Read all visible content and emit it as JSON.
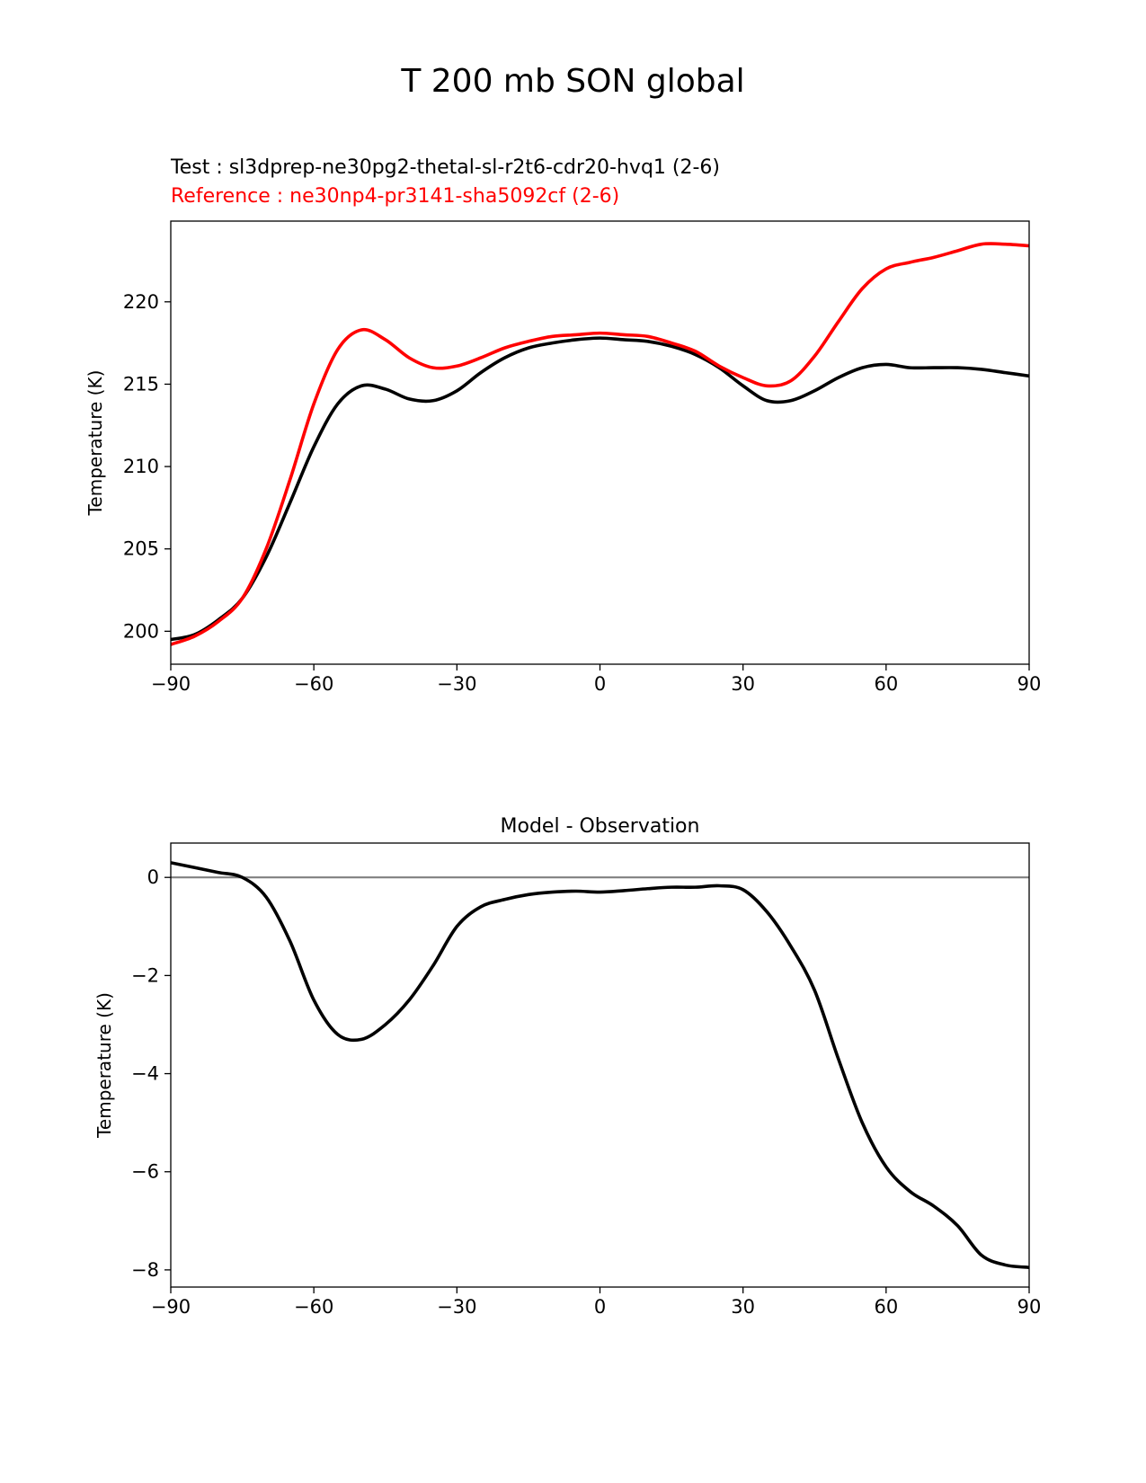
{
  "figure": {
    "title": "T 200 mb SON global",
    "legend": {
      "test": "Test : sl3dprep-ne30pg2-thetal-sl-r2t6-cdr20-hvq1 (2-6)",
      "reference": "Reference : ne30np4-pr3141-sha5092cf (2-6)"
    }
  },
  "chart_data": [
    {
      "type": "line",
      "title": "",
      "xlabel": "",
      "ylabel": "Temperature (K)",
      "xlim": [
        -90,
        90
      ],
      "ylim": [
        198,
        224.9
      ],
      "xticks": [
        -90,
        -60,
        -30,
        0,
        30,
        60,
        90
      ],
      "xtick_labels": [
        "−90",
        "−60",
        "−30",
        "0",
        "30",
        "60",
        "90"
      ],
      "yticks": [
        200,
        205,
        210,
        215,
        220
      ],
      "ytick_labels": [
        "200",
        "205",
        "210",
        "215",
        "220"
      ],
      "grid": false,
      "series": [
        {
          "name": "Test : sl3dprep-ne30pg2-thetal-sl-r2t6-cdr20-hvq1 (2-6)",
          "color": "#000000",
          "x": [
            -90,
            -85,
            -80,
            -75,
            -70,
            -65,
            -60,
            -55,
            -50,
            -45,
            -40,
            -35,
            -30,
            -25,
            -20,
            -15,
            -10,
            -5,
            0,
            5,
            10,
            15,
            20,
            25,
            30,
            35,
            40,
            45,
            50,
            55,
            60,
            65,
            70,
            75,
            80,
            85,
            90
          ],
          "y": [
            199.5,
            199.8,
            200.7,
            202.0,
            204.5,
            207.8,
            211.2,
            213.8,
            214.9,
            214.7,
            214.1,
            214.0,
            214.6,
            215.7,
            216.6,
            217.2,
            217.5,
            217.7,
            217.8,
            217.7,
            217.6,
            217.3,
            216.8,
            216.0,
            214.9,
            214.0,
            214.0,
            214.6,
            215.4,
            216.0,
            216.2,
            216.0,
            216.0,
            216.0,
            215.9,
            215.7,
            215.5
          ]
        },
        {
          "name": "Reference : ne30np4-pr3141-sha5092cf (2-6)",
          "color": "#ff0000",
          "x": [
            -90,
            -85,
            -80,
            -75,
            -70,
            -65,
            -60,
            -55,
            -50,
            -45,
            -40,
            -35,
            -30,
            -25,
            -20,
            -15,
            -10,
            -5,
            0,
            5,
            10,
            15,
            20,
            25,
            30,
            35,
            40,
            45,
            50,
            55,
            60,
            65,
            70,
            75,
            80,
            85,
            90
          ],
          "y": [
            199.2,
            199.7,
            200.6,
            202.0,
            205.0,
            209.2,
            213.8,
            217.1,
            218.3,
            217.7,
            216.6,
            216.0,
            216.1,
            216.6,
            217.2,
            217.6,
            217.9,
            218.0,
            218.1,
            218.0,
            217.9,
            217.5,
            217.0,
            216.1,
            215.4,
            214.9,
            215.2,
            216.7,
            218.8,
            220.8,
            222.0,
            222.4,
            222.7,
            223.1,
            223.5,
            223.5,
            223.4
          ]
        }
      ]
    },
    {
      "type": "line",
      "title": "Model - Observation",
      "xlabel": "",
      "ylabel": "Temperature (K)",
      "xlim": [
        -90,
        90
      ],
      "ylim": [
        -8.35,
        0.7
      ],
      "xticks": [
        -90,
        -60,
        -30,
        0,
        30,
        60,
        90
      ],
      "xtick_labels": [
        "−90",
        "−60",
        "−30",
        "0",
        "30",
        "60",
        "90"
      ],
      "yticks": [
        0,
        -2,
        -4,
        -6,
        -8
      ],
      "ytick_labels": [
        "0",
        "−2",
        "−4",
        "−6",
        "−8"
      ],
      "grid": false,
      "reference_line": {
        "y": 0,
        "color": "#808080"
      },
      "series": [
        {
          "color": "#000000",
          "x": [
            -90,
            -85,
            -80,
            -75,
            -70,
            -65,
            -60,
            -55,
            -50,
            -45,
            -40,
            -35,
            -30,
            -25,
            -20,
            -15,
            -10,
            -5,
            0,
            5,
            10,
            15,
            20,
            25,
            30,
            35,
            40,
            45,
            50,
            55,
            60,
            65,
            70,
            75,
            80,
            85,
            90
          ],
          "y": [
            0.3,
            0.2,
            0.1,
            0.0,
            -0.4,
            -1.3,
            -2.5,
            -3.2,
            -3.3,
            -3.0,
            -2.5,
            -1.8,
            -1.0,
            -0.6,
            -0.45,
            -0.35,
            -0.3,
            -0.28,
            -0.3,
            -0.27,
            -0.23,
            -0.2,
            -0.2,
            -0.17,
            -0.25,
            -0.7,
            -1.4,
            -2.3,
            -3.7,
            -5.0,
            -5.9,
            -6.4,
            -6.7,
            -7.1,
            -7.7,
            -7.9,
            -7.95
          ]
        }
      ]
    }
  ]
}
